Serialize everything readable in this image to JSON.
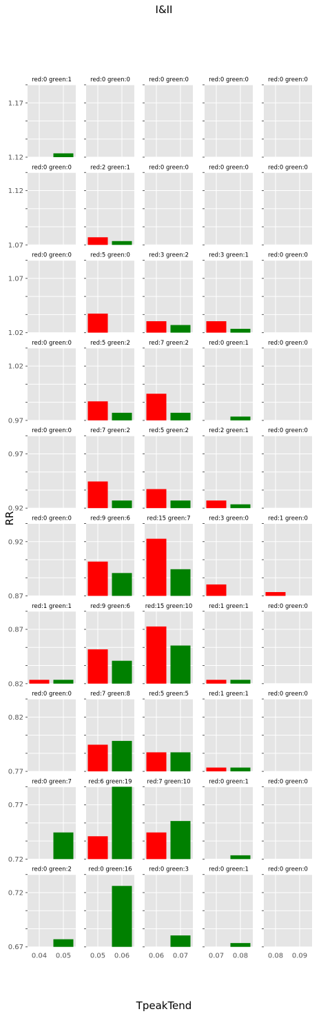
{
  "chart_data": {
    "type": "bar",
    "title": "I&II",
    "xlabel": "TpeakTend",
    "ylabel": "RR",
    "grid": true,
    "background": "#e5e5e5",
    "colors": {
      "red": "#ff0000",
      "green": "#008000"
    },
    "bar_scale_max": 19,
    "rows": [
      {
        "ylim": [
          1.12,
          1.17
        ],
        "yticks": [
          "1.17",
          "1.12"
        ],
        "panels": [
          {
            "title": "red:0 green:1",
            "red": 0,
            "green": 1
          },
          {
            "title": "red:0 green:0",
            "red": 0,
            "green": 0
          },
          {
            "title": "red:0 green:0",
            "red": 0,
            "green": 0
          },
          {
            "title": "red:0 green:0",
            "red": 0,
            "green": 0
          },
          {
            "title": "red:0 green:0",
            "red": 0,
            "green": 0
          }
        ]
      },
      {
        "ylim": [
          1.07,
          1.12
        ],
        "yticks": [
          "1.12",
          "1.07"
        ],
        "panels": [
          {
            "title": "red:0 green:0",
            "red": 0,
            "green": 0
          },
          {
            "title": "red:2 green:1",
            "red": 2,
            "green": 1
          },
          {
            "title": "red:0 green:0",
            "red": 0,
            "green": 0
          },
          {
            "title": "red:0 green:0",
            "red": 0,
            "green": 0
          },
          {
            "title": "red:0 green:0",
            "red": 0,
            "green": 0
          }
        ]
      },
      {
        "ylim": [
          1.02,
          1.07
        ],
        "yticks": [
          "1.07",
          "1.02"
        ],
        "panels": [
          {
            "title": "red:0 green:0",
            "red": 0,
            "green": 0
          },
          {
            "title": "red:5 green:0",
            "red": 5,
            "green": 0
          },
          {
            "title": "red:3 green:2",
            "red": 3,
            "green": 2
          },
          {
            "title": "red:3 green:1",
            "red": 3,
            "green": 1
          },
          {
            "title": "red:0 green:0",
            "red": 0,
            "green": 0
          }
        ]
      },
      {
        "ylim": [
          0.97,
          1.02
        ],
        "yticks": [
          "1.02",
          "0.97"
        ],
        "panels": [
          {
            "title": "red:0 green:0",
            "red": 0,
            "green": 0
          },
          {
            "title": "red:5 green:2",
            "red": 5,
            "green": 2
          },
          {
            "title": "red:7 green:2",
            "red": 7,
            "green": 2
          },
          {
            "title": "red:0 green:1",
            "red": 0,
            "green": 1
          },
          {
            "title": "red:0 green:0",
            "red": 0,
            "green": 0
          }
        ]
      },
      {
        "ylim": [
          0.92,
          0.97
        ],
        "yticks": [
          "0.97",
          "0.92"
        ],
        "panels": [
          {
            "title": "red:0 green:0",
            "red": 0,
            "green": 0
          },
          {
            "title": "red:7 green:2",
            "red": 7,
            "green": 2
          },
          {
            "title": "red:5 green:2",
            "red": 5,
            "green": 2
          },
          {
            "title": "red:2 green:1",
            "red": 2,
            "green": 1
          },
          {
            "title": "red:0 green:0",
            "red": 0,
            "green": 0
          }
        ]
      },
      {
        "ylim": [
          0.87,
          0.92
        ],
        "yticks": [
          "0.92",
          "0.87"
        ],
        "panels": [
          {
            "title": "red:0 green:0",
            "red": 0,
            "green": 0
          },
          {
            "title": "red:9 green:6",
            "red": 9,
            "green": 6
          },
          {
            "title": "red:15 green:7",
            "red": 15,
            "green": 7
          },
          {
            "title": "red:3 green:0",
            "red": 3,
            "green": 0
          },
          {
            "title": "red:1 green:0",
            "red": 1,
            "green": 0
          }
        ]
      },
      {
        "ylim": [
          0.82,
          0.87
        ],
        "yticks": [
          "0.87",
          "0.82"
        ],
        "panels": [
          {
            "title": "red:1 green:1",
            "red": 1,
            "green": 1
          },
          {
            "title": "red:9 green:6",
            "red": 9,
            "green": 6
          },
          {
            "title": "red:15 green:10",
            "red": 15,
            "green": 10
          },
          {
            "title": "red:1 green:1",
            "red": 1,
            "green": 1
          },
          {
            "title": "red:0 green:0",
            "red": 0,
            "green": 0
          }
        ]
      },
      {
        "ylim": [
          0.77,
          0.82
        ],
        "yticks": [
          "0.82",
          "0.77"
        ],
        "panels": [
          {
            "title": "red:0 green:0",
            "red": 0,
            "green": 0
          },
          {
            "title": "red:7 green:8",
            "red": 7,
            "green": 8
          },
          {
            "title": "red:5 green:5",
            "red": 5,
            "green": 5
          },
          {
            "title": "red:1 green:1",
            "red": 1,
            "green": 1
          },
          {
            "title": "red:0 green:0",
            "red": 0,
            "green": 0
          }
        ]
      },
      {
        "ylim": [
          0.72,
          0.77
        ],
        "yticks": [
          "0.77",
          "0.72"
        ],
        "panels": [
          {
            "title": "red:0 green:7",
            "red": 0,
            "green": 7
          },
          {
            "title": "red:6 green:19",
            "red": 6,
            "green": 19
          },
          {
            "title": "red:7 green:10",
            "red": 7,
            "green": 10
          },
          {
            "title": "red:0 green:1",
            "red": 0,
            "green": 1
          },
          {
            "title": "red:0 green:0",
            "red": 0,
            "green": 0
          }
        ]
      },
      {
        "ylim": [
          0.67,
          0.72
        ],
        "yticks": [
          "0.72",
          "0.67"
        ],
        "panels": [
          {
            "title": "red:0 green:2",
            "red": 0,
            "green": 2
          },
          {
            "title": "red:0 green:16",
            "red": 0,
            "green": 16
          },
          {
            "title": "red:0 green:3",
            "red": 0,
            "green": 3
          },
          {
            "title": "red:0 green:1",
            "red": 0,
            "green": 1
          },
          {
            "title": "red:0 green:0",
            "red": 0,
            "green": 0
          }
        ]
      }
    ],
    "columns": [
      {
        "xticks": [
          "0.04",
          "0.05"
        ]
      },
      {
        "xticks": [
          "0.05",
          "0.06"
        ]
      },
      {
        "xticks": [
          "0.06",
          "0.07"
        ]
      },
      {
        "xticks": [
          "0.07",
          "0.08"
        ]
      },
      {
        "xticks": [
          "0.08",
          "0.09"
        ]
      }
    ]
  }
}
